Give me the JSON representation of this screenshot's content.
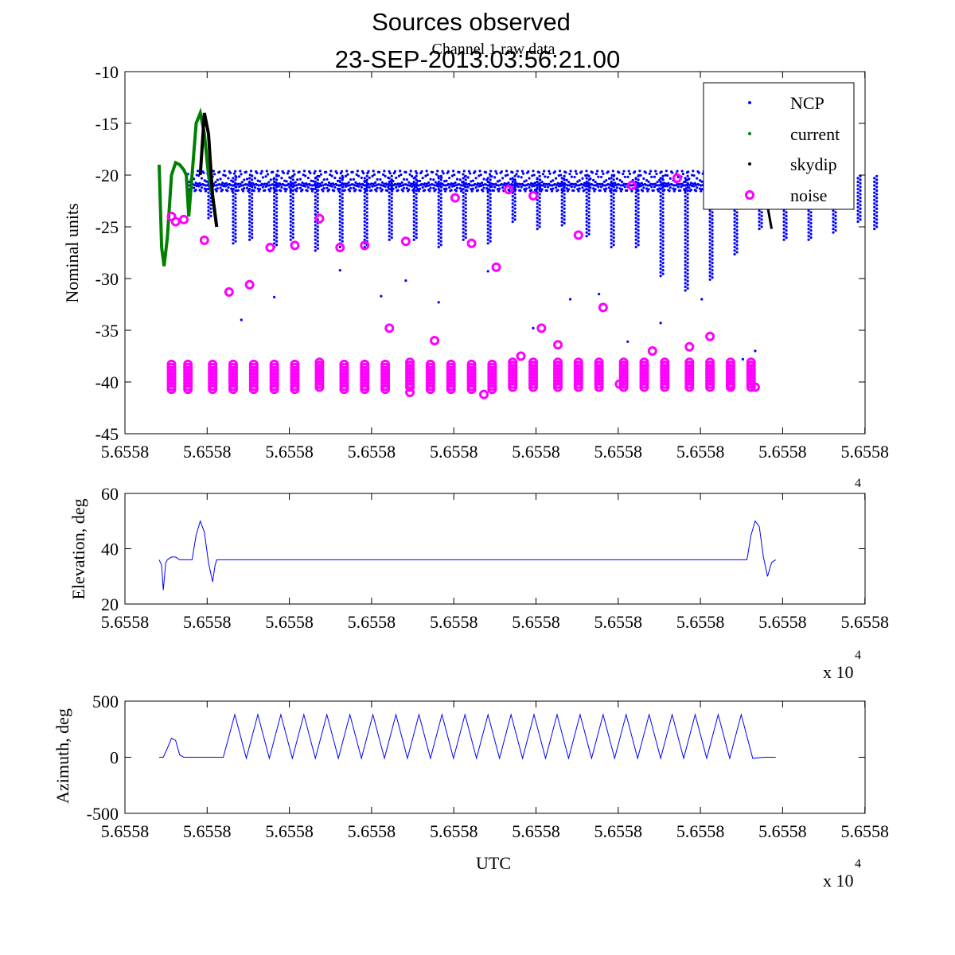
{
  "figure": {
    "title": "Sources observed",
    "subtitle_date": "23-SEP-2013:03:56:21.00",
    "panel_title": "Channel 1 raw data"
  },
  "colors": {
    "ncp": "#0000ff",
    "current": "#008000",
    "skydip": "#000000",
    "noise": "#ff00ff",
    "line": "#0000ff"
  },
  "chart_data": [
    {
      "type": "scatter",
      "name": "raw-data",
      "title": "Channel 1 raw data",
      "xlabel": "",
      "ylabel": "Nominal units",
      "xlim": [
        0,
        10
      ],
      "ylim": [
        -45,
        -10
      ],
      "xtick_labels": [
        "5.6558",
        "5.6558",
        "5.6558",
        "5.6558",
        "5.6558",
        "5.6558",
        "5.6558",
        "5.6558",
        "5.6558",
        "5.6558",
        "5.6558"
      ],
      "ytick_values": [
        -10,
        -15,
        -20,
        -25,
        -30,
        -35,
        -40,
        -45
      ],
      "ytick_labels": [
        "-10",
        "-15",
        "-20",
        "-25",
        "-30",
        "-35",
        "-40",
        "-45"
      ],
      "legend": [
        "NCP",
        "current",
        "skydip",
        "noise"
      ],
      "legend_position": "top-right",
      "ncp_baseline": -20.3,
      "ncp_dip_x": [
        0.6,
        0.9,
        1.1,
        1.4,
        1.6,
        1.9,
        2.2,
        2.5,
        2.8,
        3.1,
        3.4,
        3.7,
        4.0,
        4.3,
        4.6,
        4.9,
        5.2,
        5.5,
        5.8,
        6.1,
        6.4,
        6.7,
        7.0,
        7.3,
        7.6,
        7.9,
        8.2,
        8.5,
        8.7
      ],
      "ncp_dip_y": [
        -24.5,
        -26.8,
        -26.5,
        -27.2,
        -26.3,
        -27.5,
        -27.0,
        -27.2,
        -26.3,
        -26.5,
        -27.0,
        -26.5,
        -26.8,
        -24.8,
        -25.5,
        -25.2,
        -26.0,
        -27.2,
        -27.0,
        -30.0,
        -31.5,
        -30.2,
        -28.0,
        -25.3,
        -26.3,
        -26.3,
        -25.8,
        -24.8,
        -25.5
      ],
      "current_x": [
        0.0,
        0.03,
        0.06,
        0.1,
        0.15,
        0.2,
        0.25,
        0.3,
        0.33,
        0.36,
        0.4,
        0.45,
        0.5,
        0.55,
        0.6,
        0.65,
        0.7
      ],
      "current_y": [
        -19,
        -27,
        -28.8,
        -26,
        -20,
        -18.8,
        -19,
        -19.5,
        -20,
        -24,
        -20,
        -15,
        -14,
        -16,
        -20,
        -22,
        -25
      ],
      "skydip_x": [
        0.5,
        0.55,
        0.6,
        0.65,
        0.7
      ],
      "skydip_y": [
        -20,
        -14,
        -16,
        -22,
        -25
      ],
      "skydip_end_x": [
        7.25,
        7.3,
        7.35,
        7.4,
        7.45
      ],
      "skydip_end_y": [
        -22,
        -20.5,
        -21,
        -23,
        -25.2
      ],
      "noise_cluster_x": [
        0.15,
        0.35,
        0.65,
        0.9,
        1.15,
        1.4,
        1.65,
        1.95,
        2.25,
        2.5,
        2.75,
        3.05,
        3.3,
        3.55,
        3.8,
        4.05,
        4.3,
        4.55,
        4.85,
        5.1,
        5.35,
        5.65,
        5.9,
        6.15,
        6.45,
        6.7,
        6.95,
        7.2
      ],
      "noise_cluster_y": [
        -39.5,
        -39.5,
        -39.5,
        -39.5,
        -39.5,
        -39.5,
        -39.5,
        -39.3,
        -39.5,
        -39.5,
        -39.5,
        -39.3,
        -39.5,
        -39.5,
        -39.5,
        -39.5,
        -39.3,
        -39.3,
        -39.3,
        -39.3,
        -39.3,
        -39.3,
        -39.3,
        -39.3,
        -39.3,
        -39.3,
        -39.3,
        -39.3
      ],
      "noise_extra_x": [
        0.15,
        0.2,
        0.3,
        0.55,
        0.85,
        1.1,
        1.35,
        1.65,
        1.95,
        2.2,
        2.5,
        2.8,
        3.0,
        3.05,
        3.35,
        3.6,
        3.8,
        3.95,
        4.1,
        4.25,
        4.4,
        4.55,
        4.65,
        4.85,
        5.1,
        5.4,
        5.6,
        5.75,
        6.0,
        6.3,
        6.45,
        6.7,
        6.95,
        7.25
      ],
      "noise_extra_y": [
        -24,
        -24.5,
        -24.3,
        -26.3,
        -31.3,
        -30.6,
        -27,
        -26.8,
        -24.2,
        -27,
        -26.8,
        -34.8,
        -26.4,
        -41,
        -36,
        -22.2,
        -26.6,
        -41.2,
        -28.9,
        -21.4,
        -37.5,
        -22,
        -34.8,
        -36.4,
        -25.8,
        -32.8,
        -40.2,
        -21,
        -37,
        -20.3,
        -36.6,
        -35.6,
        -40.4,
        -40.5
      ]
    },
    {
      "type": "line",
      "name": "elevation",
      "xlabel": "",
      "ylabel": "Elevation, deg",
      "xlim": [
        0,
        10
      ],
      "ylim": [
        20,
        60
      ],
      "xtick_labels": [
        "5.6558",
        "5.6558",
        "5.6558",
        "5.6558",
        "5.6558",
        "5.6558",
        "5.6558",
        "5.6558",
        "5.6558",
        "5.6558",
        "5.6558"
      ],
      "ytick_values": [
        60,
        40,
        20
      ],
      "ytick_labels": [
        "60",
        "40",
        "20"
      ],
      "exponent_label": "x 10",
      "exponent": "4",
      "x": [
        0.0,
        0.03,
        0.05,
        0.08,
        0.1,
        0.15,
        0.2,
        0.25,
        0.3,
        0.35,
        0.4,
        0.45,
        0.5,
        0.55,
        0.6,
        0.65,
        0.68,
        0.7,
        0.75,
        0.8,
        7.1,
        7.15,
        7.2,
        7.25,
        7.3,
        7.35,
        7.4,
        7.45,
        7.5
      ],
      "y": [
        36,
        34,
        25,
        35,
        36,
        37,
        37,
        36,
        36,
        36,
        36,
        45,
        50,
        46,
        35,
        28,
        34,
        36,
        36,
        36,
        36,
        36,
        45,
        50,
        48,
        37,
        30,
        35,
        36
      ]
    },
    {
      "type": "line",
      "name": "azimuth",
      "xlabel": "UTC",
      "ylabel": "Azimuth, deg",
      "xlim": [
        0,
        10
      ],
      "ylim": [
        -500,
        500
      ],
      "xtick_labels": [
        "5.6558",
        "5.6558",
        "5.6558",
        "5.6558",
        "5.6558",
        "5.6558",
        "5.6558",
        "5.6558",
        "5.6558",
        "5.6558",
        "5.6558"
      ],
      "ytick_values": [
        500,
        0,
        -500
      ],
      "ytick_labels": [
        "500",
        "0",
        "-500"
      ],
      "exponent_label": "x 10",
      "exponent": "4",
      "x": [
        0.0,
        0.05,
        0.1,
        0.15,
        0.2,
        0.25,
        0.3,
        0.35,
        0.4,
        0.45,
        0.5,
        0.55,
        0.6,
        0.65,
        0.7,
        0.78,
        0.92,
        1.06,
        1.2,
        1.34,
        1.48,
        1.62,
        1.76,
        1.9,
        2.04,
        2.18,
        2.32,
        2.46,
        2.6,
        2.74,
        2.88,
        3.02,
        3.16,
        3.3,
        3.44,
        3.58,
        3.72,
        3.86,
        4.0,
        4.14,
        4.28,
        4.42,
        4.56,
        4.7,
        4.84,
        4.98,
        5.12,
        5.26,
        5.4,
        5.54,
        5.68,
        5.82,
        5.96,
        6.1,
        6.24,
        6.38,
        6.52,
        6.66,
        6.8,
        6.94,
        7.08,
        7.22,
        7.36,
        7.5
      ],
      "y": [
        0,
        0,
        80,
        170,
        150,
        20,
        0,
        0,
        0,
        0,
        0,
        0,
        0,
        0,
        0,
        0,
        380,
        -10,
        380,
        -10,
        380,
        -10,
        380,
        -10,
        380,
        -10,
        380,
        -10,
        380,
        -10,
        380,
        -10,
        380,
        -10,
        380,
        -10,
        380,
        -10,
        380,
        -10,
        380,
        -10,
        380,
        -10,
        380,
        -10,
        380,
        -10,
        380,
        -10,
        380,
        -10,
        380,
        -10,
        380,
        -10,
        380,
        -10,
        380,
        -10,
        380,
        -10,
        0,
        0
      ]
    }
  ]
}
